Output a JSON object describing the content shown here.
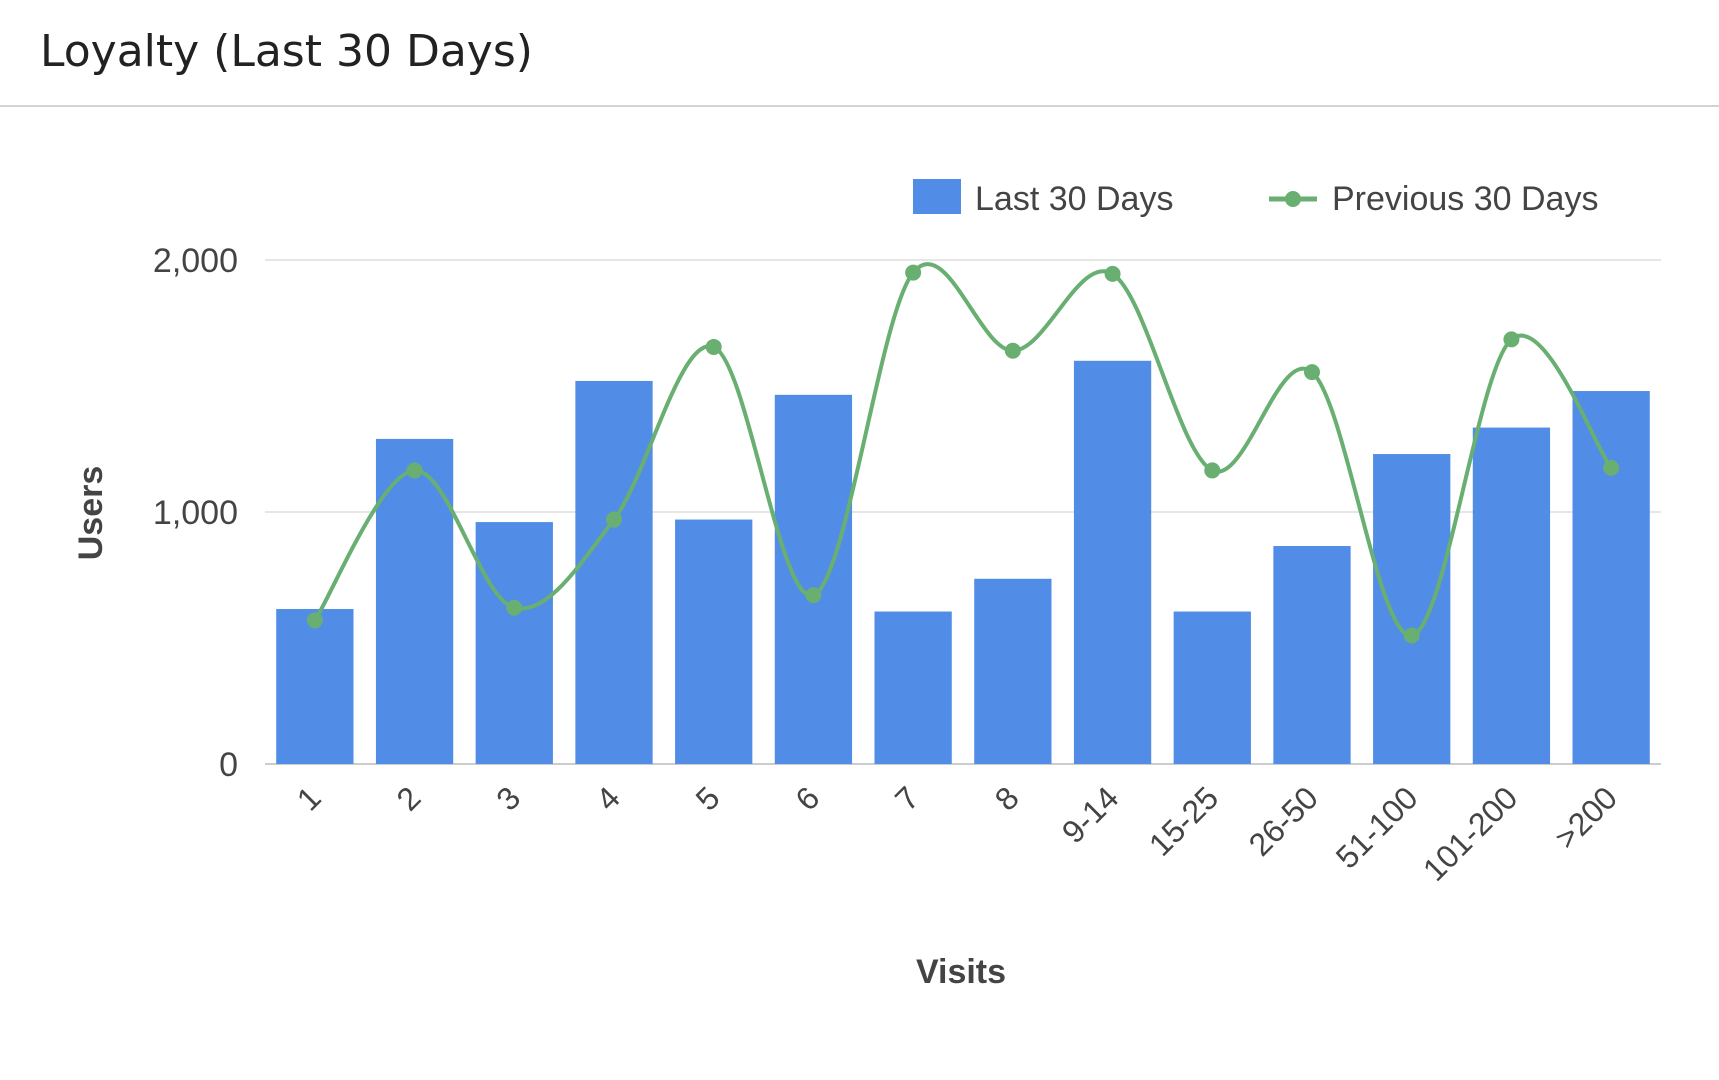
{
  "widget": {
    "title": "Loyalty (Last 30 Days)"
  },
  "chart_data": {
    "type": "bar",
    "title": "Loyalty (Last 30 Days)",
    "xlabel": "Visits",
    "ylabel": "Users",
    "ylim": [
      0,
      2000
    ],
    "y_ticks": [
      0,
      1000,
      2000
    ],
    "y_tick_labels": [
      "0",
      "1,000",
      "2,000"
    ],
    "grid": true,
    "legend_position": "top-right",
    "categories": [
      "1",
      "2",
      "3",
      "4",
      "5",
      "6",
      "7",
      "8",
      "9-14",
      "15-25",
      "26-50",
      "51-100",
      "101-200",
      ">200"
    ],
    "series": [
      {
        "name": "Last 30 Days",
        "type": "bar",
        "color": "#518de6",
        "values": [
          615,
          1290,
          960,
          1520,
          970,
          1465,
          605,
          735,
          1600,
          605,
          865,
          1230,
          1335,
          1480
        ]
      },
      {
        "name": "Previous 30 Days",
        "type": "line",
        "smooth": true,
        "color": "#68af71",
        "values": [
          570,
          1165,
          620,
          970,
          1655,
          670,
          1950,
          1640,
          1945,
          1165,
          1555,
          510,
          1685,
          1175
        ]
      }
    ]
  }
}
